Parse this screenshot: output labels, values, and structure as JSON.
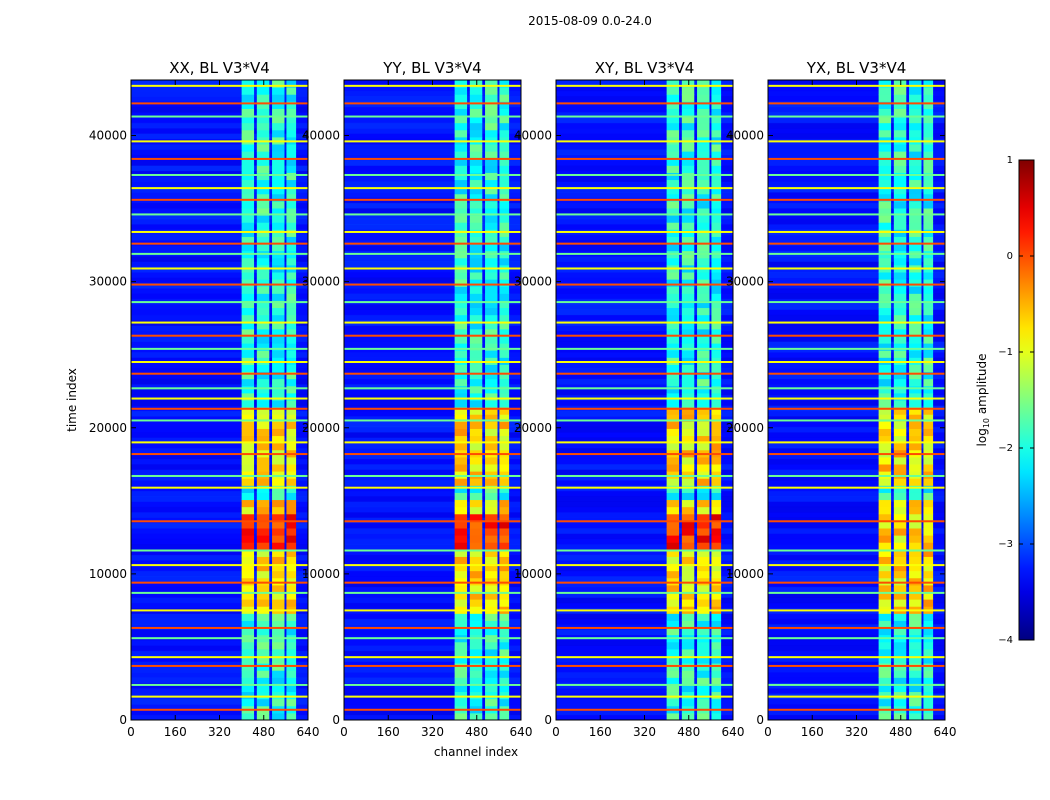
{
  "chart_data": {
    "type": "heatmap",
    "suptitle": "2015-08-09 0.0-24.0",
    "panels": [
      {
        "title": "XX, BL V3*V4"
      },
      {
        "title": "YY, BL V3*V4"
      },
      {
        "title": "XY, BL V3*V4"
      },
      {
        "title": "YX, BL V3*V4"
      }
    ],
    "xlabel": "channel index",
    "ylabel": "time index",
    "x_ticks": [
      "0",
      "160",
      "320",
      "480",
      "640"
    ],
    "y_ticks": [
      "0",
      "10000",
      "20000",
      "30000",
      "40000"
    ],
    "xlim": [
      0,
      640
    ],
    "ylim": [
      0,
      43800
    ],
    "colorbar": {
      "label": "log",
      "label_sub": "10",
      "label_rest": " amplitude",
      "range": [
        -4,
        1
      ],
      "ticks": [
        "−4",
        "−3",
        "−2",
        "−1",
        "0",
        "1"
      ],
      "colormap": "jet",
      "colors": [
        "#00007f",
        "#0000ff",
        "#007fff",
        "#00ffff",
        "#7fff7f",
        "#ffff00",
        "#ff7f00",
        "#ff0000",
        "#7f0000"
      ]
    },
    "features": {
      "baseline_level": -3.3,
      "bright_channel_range": [
        400,
        600
      ],
      "bright_block_channels": [
        [
          400,
          445
        ],
        [
          455,
          500
        ],
        [
          510,
          555
        ],
        [
          562,
          597
        ]
      ],
      "active_time_ranges": [
        [
          7500,
          15000
        ],
        [
          16200,
          21500
        ]
      ],
      "flagged_time_rows": [
        700,
        1600,
        2400,
        3700,
        4300,
        5600,
        6300,
        7500,
        8700,
        9400,
        10600,
        11600,
        13600,
        15900,
        16700,
        18200,
        19000,
        20500,
        21300,
        22000,
        22700,
        23700,
        24500,
        25400,
        26300,
        27200,
        28600,
        29800,
        30900,
        31900,
        32600,
        33400,
        34600,
        35600,
        36400,
        37300,
        38400,
        39600,
        41300,
        42200,
        43400
      ]
    }
  }
}
